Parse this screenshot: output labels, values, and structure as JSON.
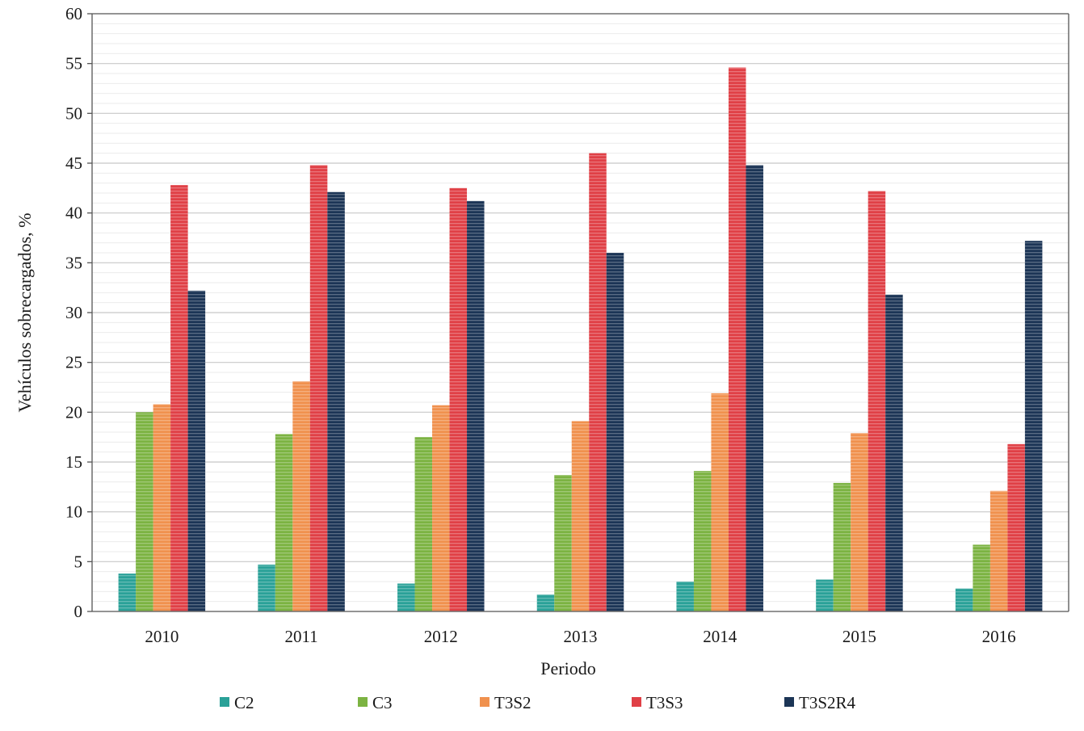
{
  "chart_data": {
    "type": "bar",
    "title": "",
    "xlabel": "Periodo",
    "ylabel": "Vehículos sobrecargados, %",
    "ylim": [
      0,
      60
    ],
    "yticks": [
      0,
      5,
      10,
      15,
      20,
      25,
      30,
      35,
      40,
      45,
      50,
      55,
      60
    ],
    "grid": true,
    "legend_position": "bottom",
    "categories": [
      "2010",
      "2011",
      "2012",
      "2013",
      "2014",
      "2015",
      "2016"
    ],
    "series": [
      {
        "name": "C2",
        "color": "#2aa198",
        "values": [
          3.8,
          4.7,
          2.8,
          1.7,
          3.0,
          3.2,
          2.3
        ]
      },
      {
        "name": "C3",
        "color": "#7cb342",
        "values": [
          20.0,
          17.8,
          17.5,
          13.7,
          14.1,
          12.9,
          6.7
        ]
      },
      {
        "name": "T3S2",
        "color": "#f0914e",
        "values": [
          20.8,
          23.1,
          20.7,
          19.1,
          21.9,
          17.9,
          12.1
        ]
      },
      {
        "name": "T3S3",
        "color": "#e04046",
        "values": [
          42.8,
          44.8,
          42.5,
          46.0,
          54.6,
          42.2,
          16.8
        ]
      },
      {
        "name": "T3S2R4",
        "color": "#1c3556",
        "values": [
          32.2,
          42.1,
          41.2,
          36.0,
          44.8,
          31.8,
          37.2
        ]
      }
    ]
  }
}
